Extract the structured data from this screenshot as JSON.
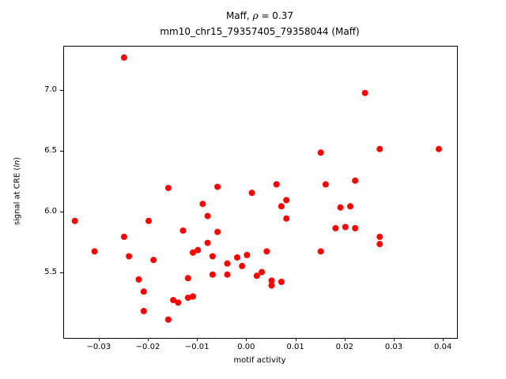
{
  "title": {
    "line1_prefix": "Maff, ",
    "line1_rho": "ρ",
    "line1_suffix": " = 0.37",
    "line2": "mm10_chr15_79357405_79358044 (Maff)"
  },
  "ylabel_parts": {
    "pre": "signal at CRE (",
    "italic": "ln",
    "post": ")"
  },
  "chart_data": {
    "type": "scatter",
    "title": "Maff, ρ = 0.37",
    "subtitle": "mm10_chr15_79357405_79358044 (Maff)",
    "xlabel": "motif activity",
    "ylabel": "signal at CRE (ln)",
    "xlim": [
      -0.0372,
      0.0427
    ],
    "ylim": [
      4.97,
      7.36
    ],
    "grid": false,
    "legend": "none",
    "marker_color": "#ff0000",
    "marker_radius": 4,
    "x_ticks": {
      "values": [
        -0.03,
        -0.02,
        -0.01,
        0.0,
        0.01,
        0.02,
        0.03,
        0.04
      ],
      "labels": [
        "−0.03",
        "−0.02",
        "−0.01",
        "0.00",
        "0.01",
        "0.02",
        "0.03",
        "0.04"
      ]
    },
    "y_ticks": {
      "values": [
        5.5,
        6.0,
        6.5,
        7.0
      ],
      "labels": [
        "5.5",
        "6.0",
        "6.5",
        "7.0"
      ]
    },
    "points": [
      [
        -0.035,
        5.93
      ],
      [
        -0.031,
        5.68
      ],
      [
        -0.025,
        7.27
      ],
      [
        -0.025,
        5.8
      ],
      [
        -0.024,
        5.64
      ],
      [
        -0.022,
        5.45
      ],
      [
        -0.021,
        5.35
      ],
      [
        -0.021,
        5.19
      ],
      [
        -0.02,
        5.93
      ],
      [
        -0.019,
        5.61
      ],
      [
        -0.016,
        6.2
      ],
      [
        -0.016,
        5.12
      ],
      [
        -0.015,
        5.28
      ],
      [
        -0.014,
        5.26
      ],
      [
        -0.013,
        5.85
      ],
      [
        -0.012,
        5.3
      ],
      [
        -0.012,
        5.46
      ],
      [
        -0.011,
        5.31
      ],
      [
        -0.011,
        5.67
      ],
      [
        -0.01,
        5.69
      ],
      [
        -0.009,
        6.07
      ],
      [
        -0.008,
        5.75
      ],
      [
        -0.008,
        5.97
      ],
      [
        -0.007,
        5.64
      ],
      [
        -0.007,
        5.49
      ],
      [
        -0.006,
        5.84
      ],
      [
        -0.006,
        6.21
      ],
      [
        -0.004,
        5.49
      ],
      [
        -0.004,
        5.58
      ],
      [
        -0.002,
        5.63
      ],
      [
        -0.001,
        5.56
      ],
      [
        0.0,
        5.65
      ],
      [
        0.001,
        6.16
      ],
      [
        0.002,
        5.48
      ],
      [
        0.003,
        5.51
      ],
      [
        0.004,
        5.68
      ],
      [
        0.005,
        5.4
      ],
      [
        0.005,
        5.44
      ],
      [
        0.006,
        6.23
      ],
      [
        0.007,
        6.05
      ],
      [
        0.008,
        6.1
      ],
      [
        0.008,
        5.95
      ],
      [
        0.007,
        5.43
      ],
      [
        0.015,
        6.49
      ],
      [
        0.016,
        6.23
      ],
      [
        0.015,
        5.68
      ],
      [
        0.018,
        5.87
      ],
      [
        0.019,
        6.04
      ],
      [
        0.02,
        5.88
      ],
      [
        0.021,
        6.05
      ],
      [
        0.022,
        6.26
      ],
      [
        0.022,
        5.87
      ],
      [
        0.024,
        6.98
      ],
      [
        0.027,
        6.52
      ],
      [
        0.027,
        5.8
      ],
      [
        0.027,
        5.74
      ],
      [
        0.039,
        6.52
      ]
    ]
  }
}
